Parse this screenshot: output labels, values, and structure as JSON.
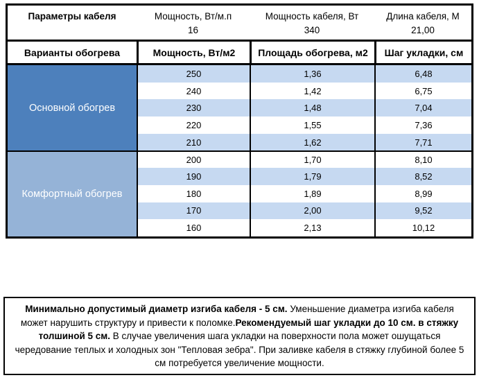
{
  "top_table": {
    "header_row": {
      "col1": "Параметры кабеля",
      "col2": "Мощность, Вт/м.п",
      "col3": "Мощность кабеля, Вт",
      "col4": "Длина кабеля, М"
    },
    "values_row": {
      "col1": "",
      "col2": "16",
      "col3": "340",
      "col4": "21,00"
    }
  },
  "main_table": {
    "headers": {
      "variants": "Варианты обогрева",
      "power": "Мощность, Вт/м2",
      "area": "Площадь обогрева, м2",
      "step": "Шаг укладки, см"
    },
    "groups": [
      {
        "label": "Основной обогрев",
        "color_key": "group_primary",
        "rows": [
          [
            "250",
            "1,36",
            "6,48"
          ],
          [
            "240",
            "1,42",
            "6,75"
          ],
          [
            "230",
            "1,48",
            "7,04"
          ],
          [
            "220",
            "1,55",
            "7,36"
          ],
          [
            "210",
            "1,62",
            "7,71"
          ]
        ]
      },
      {
        "label": "Комфортный обогрев",
        "color_key": "group_comfort",
        "rows": [
          [
            "200",
            "1,70",
            "8,10"
          ],
          [
            "190",
            "1,79",
            "8,52"
          ],
          [
            "180",
            "1,89",
            "8,99"
          ],
          [
            "170",
            "2,00",
            "9,52"
          ],
          [
            "160",
            "2,13",
            "10,12"
          ]
        ]
      }
    ]
  },
  "note": {
    "segments": [
      {
        "text": "Минимально допустимый диаметр изгиба кабеля - 5 см.",
        "bold": true
      },
      {
        "text": "  Уменьшение диаметра изгиба кабеля может нарушить структуру и привести к поломке.",
        "bold": false
      },
      {
        "text": "Рекомендуемый шаг укладки до 10 см. в стяжку толшиной 5 см.",
        "bold": true
      },
      {
        "text": " В  случае увеличения шага укладки на поверхности пола может ошущаться чередование теплых и холодных зон \"Тепловая зебра\". При заливке кабеля в стяжку глубиной более 5 см потребуется увеличение мощности.",
        "bold": false
      }
    ]
  },
  "colors": {
    "group_primary": "#4d80bc",
    "group_comfort": "#95b3d7",
    "stripe_light": "#c6d9f1",
    "row_white": "#ffffff",
    "border": "#000000",
    "text": "#000000",
    "group_text": "#ffffff"
  }
}
